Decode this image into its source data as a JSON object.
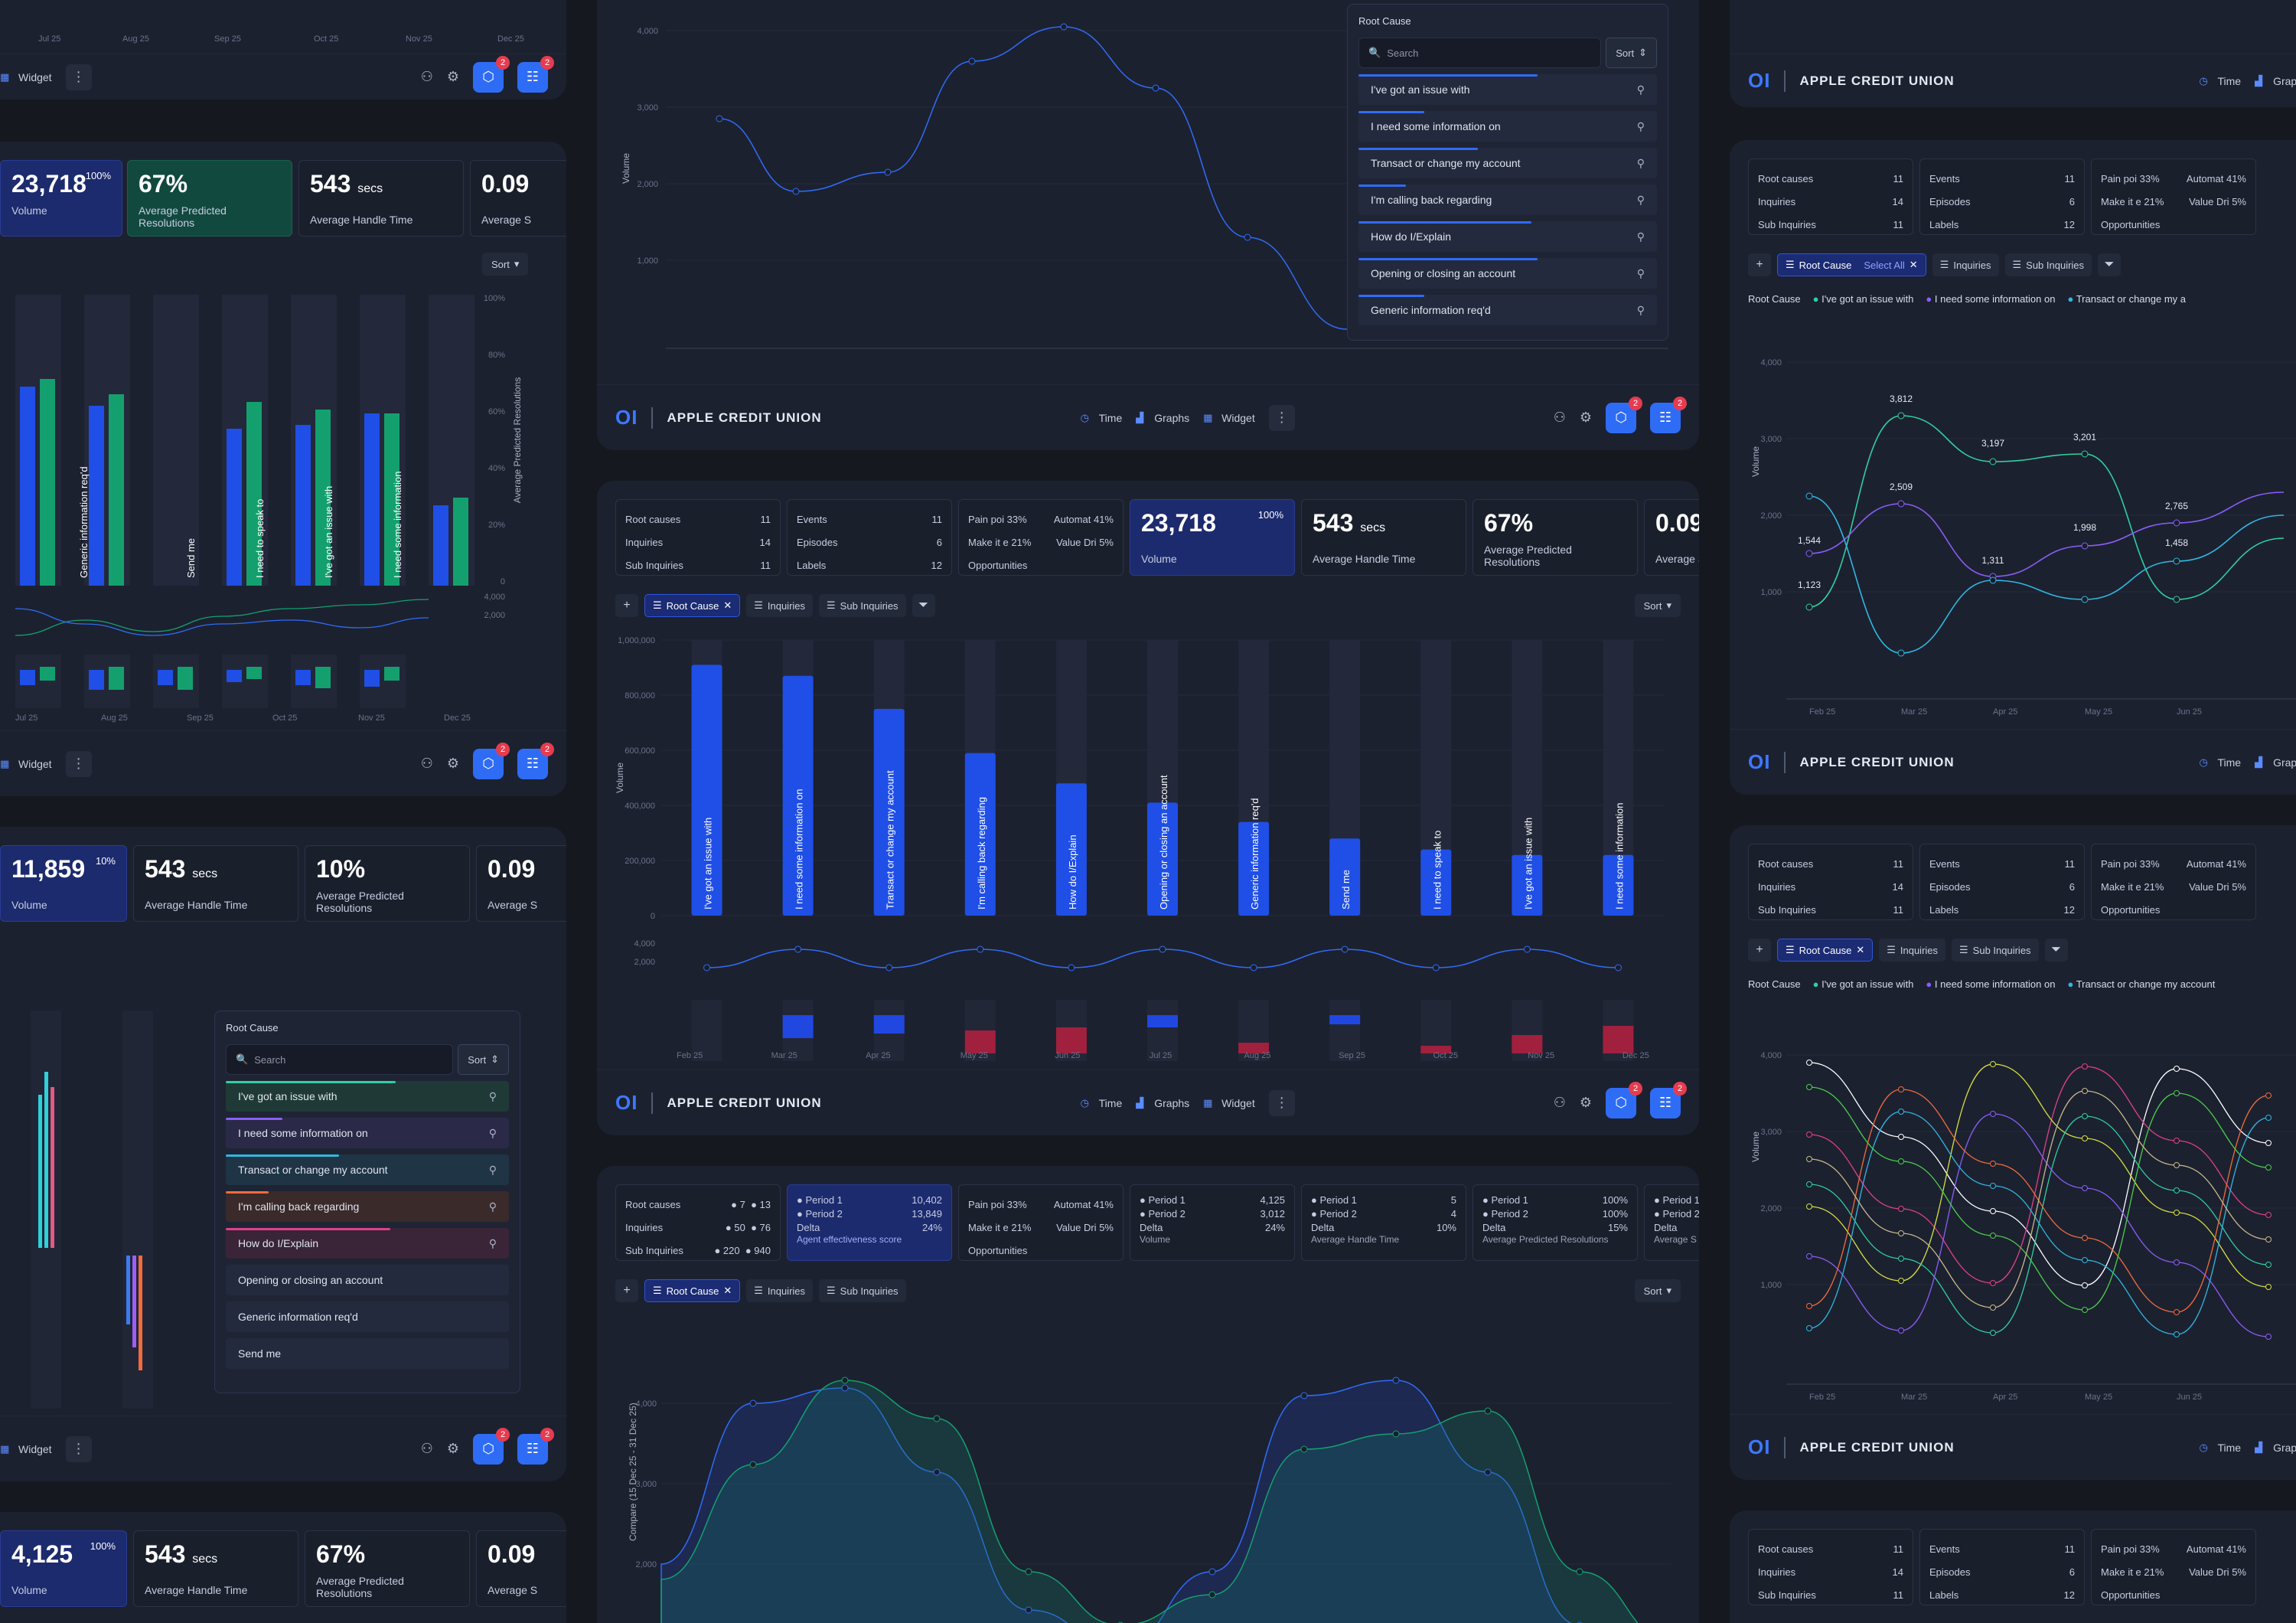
{
  "brand": {
    "logo": "OI",
    "name": "APPLE CREDIT UNION"
  },
  "footer": {
    "time": "Time",
    "graphs": "Graphs",
    "widget": "Widget",
    "more": "⋮",
    "badge": "2"
  },
  "metrics": {
    "volume_label": "Volume",
    "aht_label": "Average Handle Time",
    "apr_label": "Average Predicted Resolutions",
    "avg_s_label": "Average S",
    "secs": "secs",
    "v1": "23,718",
    "v1_pct": "100%",
    "v2": "11,859",
    "v2_pct": "10%",
    "v3": "4,125",
    "v3_pct": "100%",
    "aht": "543",
    "apr1": "67%",
    "apr2": "10%",
    "avg": "0.09"
  },
  "summary": {
    "root_causes": "Root causes",
    "root_causes_v": "11",
    "inquiries": "Inquiries",
    "inquiries_v": "14",
    "sub_inquiries": "Sub Inquiries",
    "sub_inquiries_v": "11",
    "events": "Events",
    "events_v": "11",
    "episodes": "Episodes",
    "episodes_v": "6",
    "labels": "Labels",
    "labels_v": "12",
    "pain": "Pain poi",
    "pain_v": "33%",
    "automat": "Automat",
    "automat_v": "41%",
    "make": "Make it e",
    "make_v": "21%",
    "value": "Value Dri",
    "value_v": "5%",
    "opportunities": "Opportunities"
  },
  "compare": {
    "root_a": "7",
    "root_b": "13",
    "inq_a": "50",
    "inq_b": "76",
    "sub_a": "220",
    "sub_b": "940",
    "period1": "Period 1",
    "period2": "Period 2",
    "delta": "Delta",
    "agent_p1": "10,402",
    "agent_p2": "13,849",
    "agent_d": "24%",
    "agent_lbl": "Agent effectiveness score",
    "vol_p1": "4,125",
    "vol_p2": "3,012",
    "vol_d": "24%",
    "aht_p1": "5",
    "aht_p2": "4",
    "aht_d": "10%",
    "apr_p1": "100%",
    "apr_p2": "100%",
    "apr_d": "15%"
  },
  "filters": {
    "root_cause": "Root Cause",
    "inquiries": "Inquiries",
    "sub_inquiries": "Sub Inquiries",
    "sort": "Sort",
    "select_all": "Select All",
    "add": "+"
  },
  "dropdown": {
    "title": "Root Cause",
    "search_placeholder": "Search",
    "sort": "Sort",
    "items": [
      "I've got an issue with",
      "I need some information on",
      "Transact or change my account",
      "I'm calling back regarding",
      "How do I/Explain",
      "Opening or closing an account",
      "Generic information req'd",
      "Send me"
    ]
  },
  "bar_chart": {
    "categories": [
      "I've got an issue with",
      "I need some information on",
      "Transact or change my account",
      "I'm calling back regarding",
      "How do I/Explain",
      "Opening or closing an account",
      "Generic information req'd",
      "Send me",
      "I need to speak to",
      "I've got an issue with",
      "I need some information"
    ],
    "values": [
      910000,
      870000,
      750000,
      590000,
      480000,
      410000,
      340000,
      280000,
      240000,
      220000,
      220000
    ],
    "yticks": [
      "1,000,000",
      "800,000",
      "600,000",
      "400,000",
      "200,000",
      "0"
    ],
    "ylabel": "Volume",
    "lower_ticks": [
      "4,000",
      "2,000"
    ]
  },
  "months": [
    "Feb 25",
    "Mar 25",
    "Apr 25",
    "May 25",
    "Jun 25",
    "Jul 25",
    "Aug 25",
    "Sep 25",
    "Oct 25",
    "Nov 25",
    "Dec 25"
  ],
  "left_bar_labels": [
    "Generic information req'd",
    "Send me",
    "I need to speak to",
    "I've got an issue with",
    "I need some information"
  ],
  "left_axis": {
    "pcts": [
      "100%",
      "80%",
      "60%",
      "40%",
      "20%",
      "0"
    ],
    "ylabel": "Average Predicted Resolutions",
    "ticks": [
      "4,000",
      "2,000"
    ]
  },
  "left_months": [
    "Jul 25",
    "Aug 25",
    "Sep 25",
    "Oct 25",
    "Nov 25",
    "Dec 25"
  ],
  "top_line": {
    "yticks": [
      "4,000",
      "3,000",
      "2,000",
      "1,000"
    ],
    "ylabel": "Volume"
  },
  "right_chart1": {
    "legend_title": "Root Cause",
    "legend": [
      "I've got an issue with",
      "I need some information on",
      "Transact or change my a"
    ],
    "labels": [
      "3,812",
      "3,197",
      "3,201",
      "2,509",
      "2,765",
      "1,544",
      "1,998",
      "1,311",
      "1,458",
      "1,123"
    ],
    "yticks": [
      "4,000",
      "3,000",
      "2,000",
      "1,000"
    ],
    "ylabel": "Volume",
    "months": [
      "Feb 25",
      "Mar 25",
      "Apr 25",
      "May 25",
      "Jun 25"
    ]
  },
  "right_chart2": {
    "legend": [
      "I've got an issue with",
      "I need some information on",
      "Transact or change my account"
    ],
    "yticks": [
      "4,000",
      "3,000",
      "2,000",
      "1,000"
    ]
  },
  "bottom_chart": {
    "ylabel": "Compare (15 Dec 25 - 31 Dec 25)",
    "yticks": [
      "4,000",
      "3,000",
      "2,000"
    ]
  }
}
